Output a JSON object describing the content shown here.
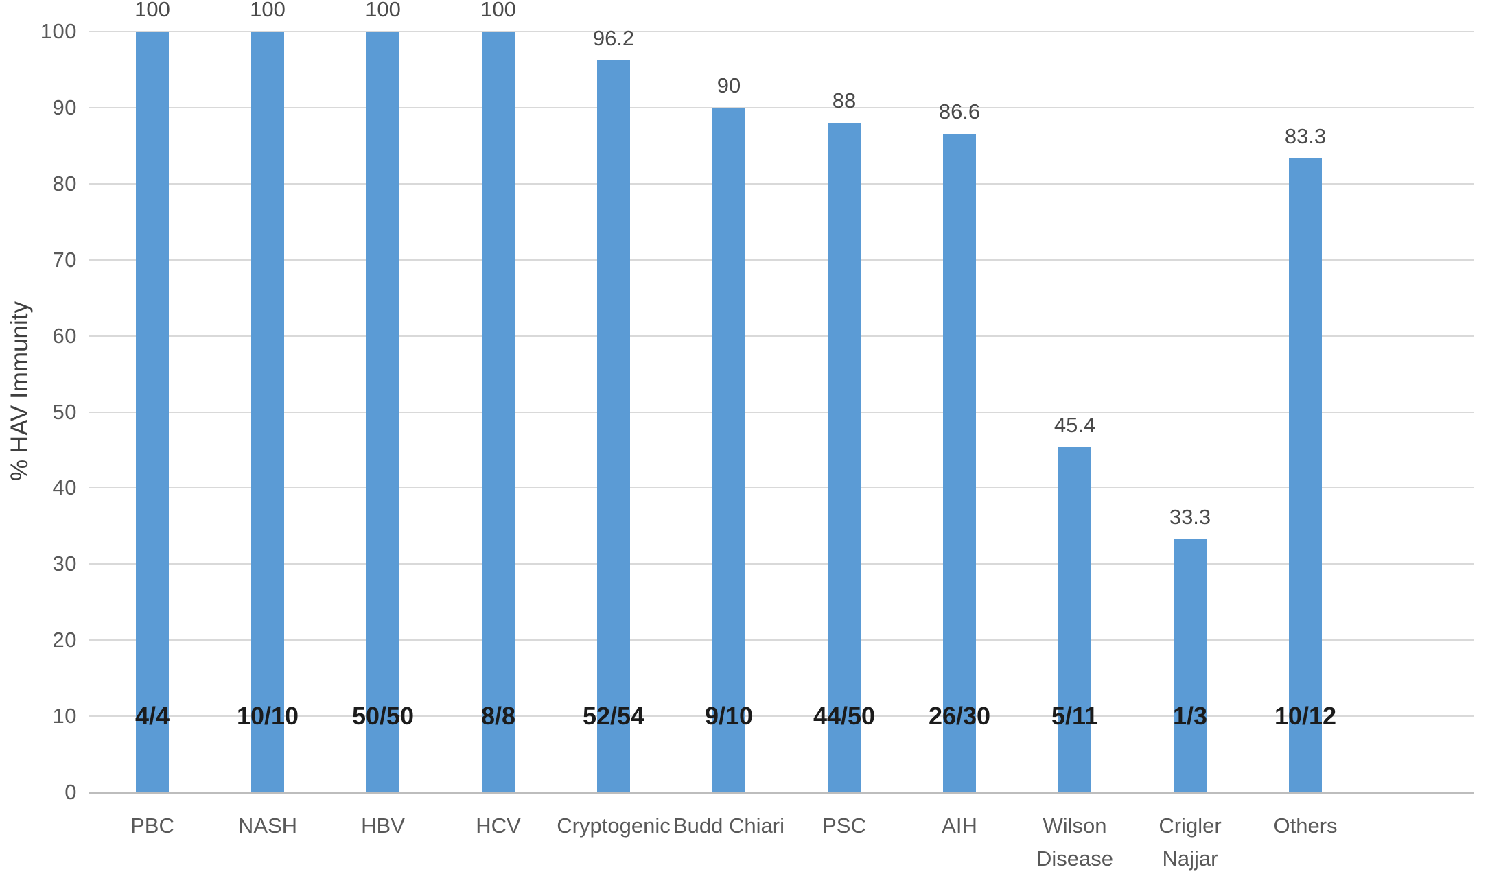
{
  "chart_data": {
    "type": "bar",
    "title": "",
    "xlabel": "",
    "ylabel": "% HAV Immunity",
    "ylim": [
      0,
      100
    ],
    "yticks": [
      0,
      10,
      20,
      30,
      40,
      50,
      60,
      70,
      80,
      90,
      100
    ],
    "grid": "horizontal",
    "legend_position": "none",
    "categories": [
      "PBC",
      "NASH",
      "HBV",
      "HCV",
      "Cryptogenic",
      "Budd Chiari",
      "PSC",
      "AIH",
      "Wilson Disease",
      "Crigler Najjar",
      "Others"
    ],
    "category_label_lines": [
      [
        "PBC"
      ],
      [
        "NASH"
      ],
      [
        "HBV"
      ],
      [
        "HCV"
      ],
      [
        "Cryptogenic"
      ],
      [
        "Budd Chiari"
      ],
      [
        "PSC"
      ],
      [
        "AIH"
      ],
      [
        "Wilson",
        "Disease"
      ],
      [
        "Crigler",
        "Najjar"
      ],
      [
        "Others"
      ]
    ],
    "values": [
      100,
      100,
      100,
      100,
      96.2,
      90,
      88,
      86.6,
      45.4,
      33.3,
      83.3
    ],
    "value_labels": [
      "100",
      "100",
      "100",
      "100",
      "96.2",
      "90",
      "88",
      "86.6",
      "45.4",
      "33.3",
      "83.3"
    ],
    "fraction_labels": [
      "4/4",
      "10/10",
      "50/50",
      "8/8",
      "52/54",
      "9/10",
      "44/50",
      "26/30",
      "5/11",
      "1/3",
      "10/12"
    ],
    "fraction_label_at_value": 10
  },
  "colors": {
    "bar_fill": "#5b9bd5",
    "gridline": "#d9d9d9",
    "axis_line": "#bdbdbd",
    "tick_label": "#595959",
    "value_label": "#4a4a4a",
    "fraction_label": "#1b1b1b",
    "background": "#ffffff"
  }
}
